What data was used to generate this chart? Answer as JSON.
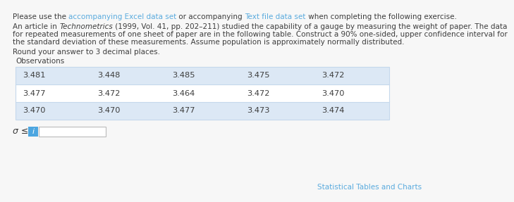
{
  "link1": "accompanying Excel data set",
  "link2": "Text file data set",
  "body_line1": "An article in ",
  "body_italic": "Technometrics",
  "body_line1b": " (1999, Vol. 41, pp. 202–211) studied the capability of a gauge by measuring the weight of paper. The data",
  "body_line2": "for repeated measurements of one sheet of paper are in the following table. Construct a 90% one-sided, upper confidence interval for",
  "body_line3": "the standard deviation of these measurements. Assume population is approximately normally distributed.",
  "round_text": "Round your answer to 3 decimal places.",
  "obs_label": "Observations",
  "table_rows": [
    [
      "3.481",
      "3.448",
      "3.485",
      "3.475",
      "3.472"
    ],
    [
      "3.477",
      "3.472",
      "3.464",
      "3.472",
      "3.470"
    ],
    [
      "3.470",
      "3.470",
      "3.477",
      "3.473",
      "3.474"
    ]
  ],
  "row_shaded": [
    true,
    false,
    true
  ],
  "shaded_color": "#dce8f5",
  "white_color": "#ffffff",
  "table_border_color": "#c5d8ec",
  "link_color": "#5aabde",
  "text_color": "#3d3d3d",
  "sigma_label": "σ ≤",
  "info_button_color": "#4da6e0",
  "footer_link": "Statistical Tables and Charts",
  "footer_link_color": "#5aabde",
  "background_color": "#f7f7f7",
  "font_size_body": 7.5,
  "font_size_table": 8.2,
  "font_size_sigma": 9.0
}
